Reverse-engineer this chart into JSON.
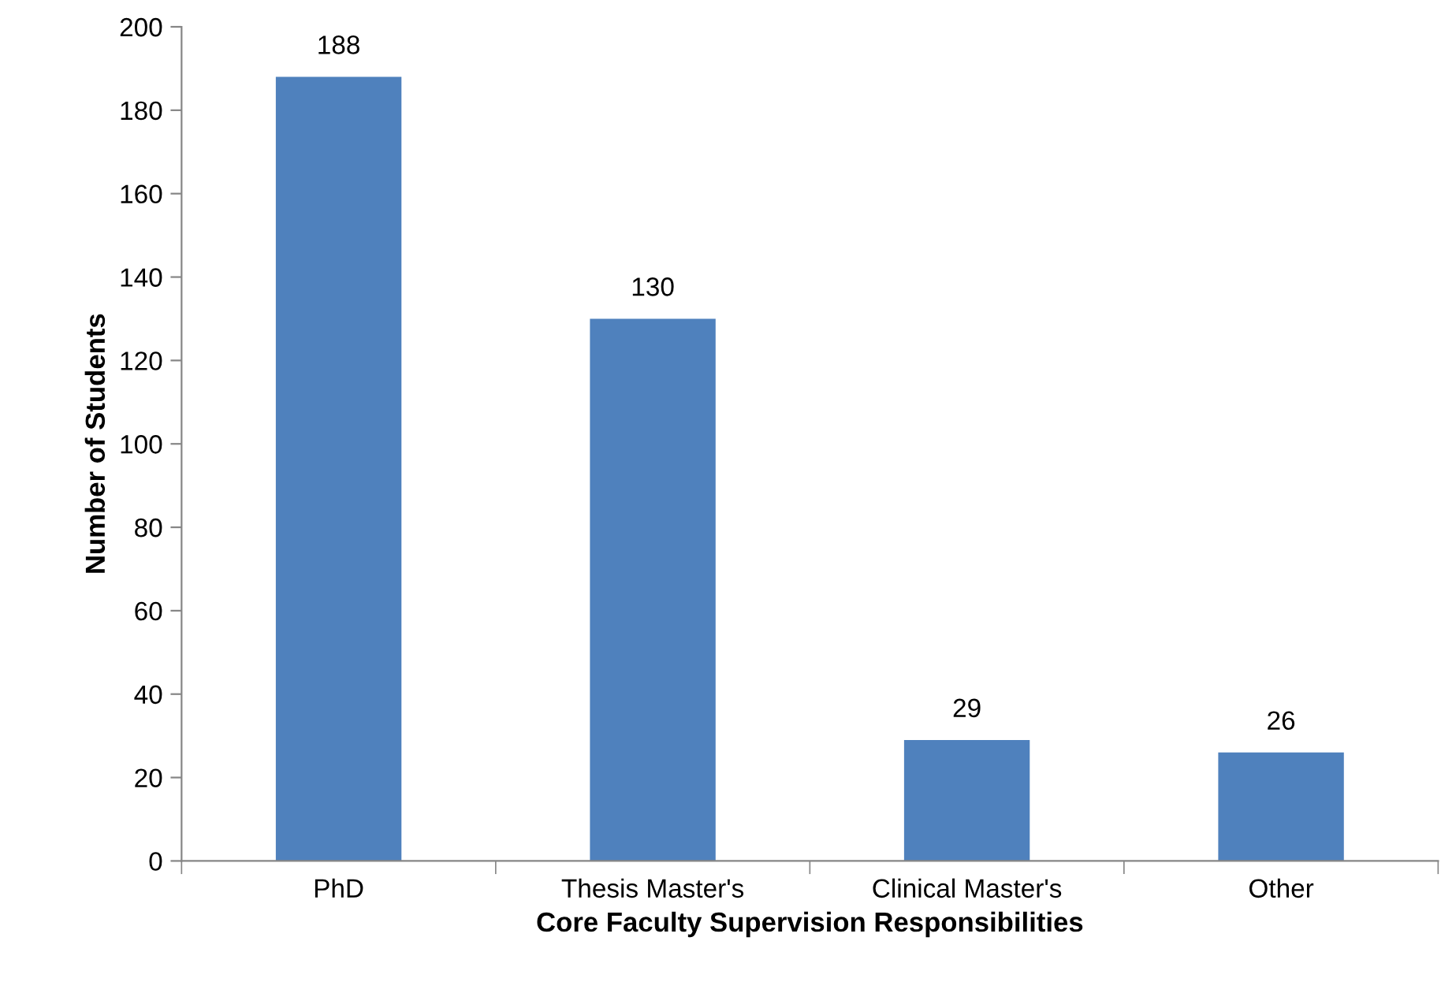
{
  "chart_data": {
    "type": "bar",
    "xlabel": "Core Faculty Supervision Responsibilities",
    "ylabel": "Number of Students",
    "categories": [
      "PhD",
      "Thesis Master's",
      "Clinical Master's",
      "Other"
    ],
    "values": [
      188,
      130,
      29,
      26
    ],
    "color": "#4f81bd",
    "ylim": [
      0,
      200
    ],
    "yticks": [
      0,
      20,
      40,
      60,
      80,
      100,
      120,
      140,
      160,
      180,
      200
    ],
    "data_labels": true,
    "grid": false,
    "legend": false
  }
}
